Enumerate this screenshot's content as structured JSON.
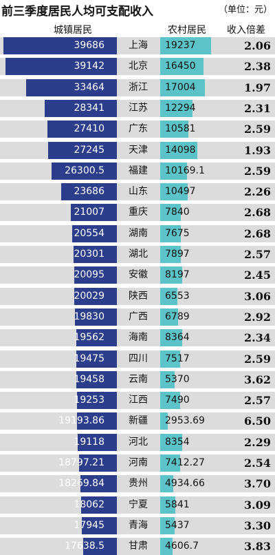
{
  "header": {
    "title": "前三季度居民人均可支配收入",
    "unit": "（单位：元）"
  },
  "chart_data": {
    "type": "table",
    "title": "前三季度居民人均可支配收入",
    "columns": [
      "城镇居民",
      "农村居民",
      "收入倍差"
    ],
    "provinces": [
      "上海",
      "北京",
      "浙江",
      "江苏",
      "广东",
      "天津",
      "福建",
      "山东",
      "重庆",
      "湖南",
      "湖北",
      "安徽",
      "陕西",
      "广西",
      "海南",
      "四川",
      "云南",
      "江西",
      "新疆",
      "河北",
      "河南",
      "贵州",
      "宁夏",
      "青海",
      "甘肃"
    ],
    "urban": [
      "39686",
      "39142",
      "33464",
      "28341",
      "27410",
      "27245",
      "26300.5",
      "23686",
      "21007",
      "20554",
      "20301",
      "20095",
      "20029",
      "19830",
      "19562",
      "19475",
      "19458",
      "19253",
      "19193.86",
      "19118",
      "18797.21",
      "18269.84",
      "18062",
      "17945",
      "17638.5"
    ],
    "rural": [
      "19237",
      "16450",
      "17004",
      "12294",
      "10581",
      "14098",
      "10169.1",
      "10497",
      "7840",
      "7675",
      "7897",
      "8197",
      "6553",
      "6789",
      "8364",
      "7517",
      "5370",
      "7490",
      "2953.69",
      "8354",
      "7412.27",
      "4934.66",
      "5841",
      "5437",
      "4606.7"
    ],
    "ratio": [
      "2.06",
      "2.38",
      "1.97",
      "2.31",
      "2.59",
      "1.93",
      "2.59",
      "2.26",
      "2.68",
      "2.68",
      "2.57",
      "2.45",
      "3.06",
      "2.92",
      "2.34",
      "2.59",
      "3.62",
      "2.57",
      "6.50",
      "2.29",
      "2.54",
      "3.70",
      "3.09",
      "3.30",
      "3.83"
    ],
    "colors": {
      "urban_bar": "#2b3d8b",
      "rural_bar": "#5cc3c8",
      "row_bg": "#dcdcdc"
    }
  }
}
